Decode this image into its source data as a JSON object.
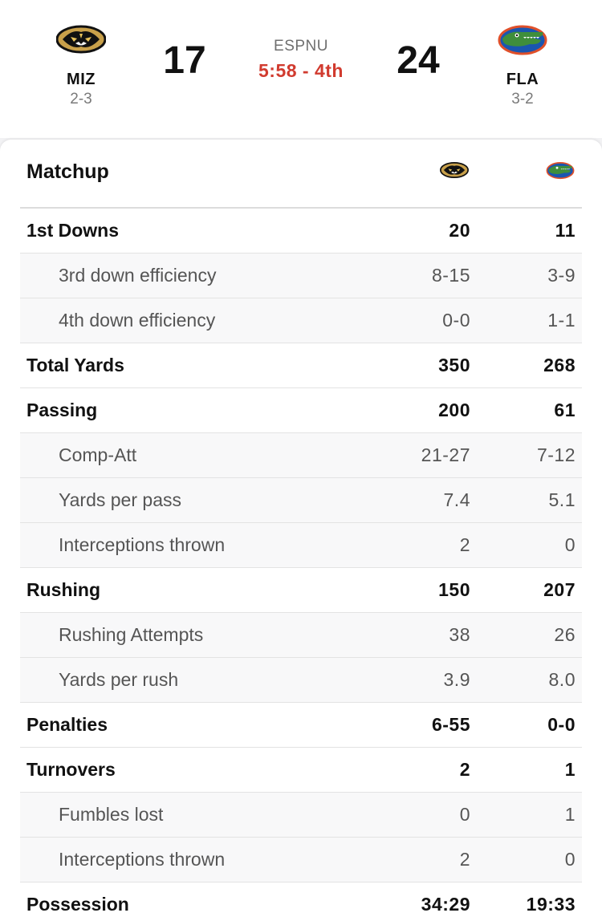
{
  "scoreboard": {
    "away": {
      "abbr": "MIZ",
      "record": "2-3",
      "score": "17",
      "logo_icon": "missouri-tiger-logo-icon"
    },
    "home": {
      "abbr": "FLA",
      "record": "3-2",
      "score": "24",
      "logo_icon": "florida-gator-logo-icon"
    },
    "network": "ESPNU",
    "clock": "5:58 - 4th",
    "clock_color": "#d13b2f"
  },
  "matchup": {
    "title": "Matchup",
    "rows": [
      {
        "label": "1st Downs",
        "away": "20",
        "home": "11",
        "sub": false
      },
      {
        "label": "3rd down efficiency",
        "away": "8-15",
        "home": "3-9",
        "sub": true
      },
      {
        "label": "4th down efficiency",
        "away": "0-0",
        "home": "1-1",
        "sub": true
      },
      {
        "label": "Total Yards",
        "away": "350",
        "home": "268",
        "sub": false
      },
      {
        "label": "Passing",
        "away": "200",
        "home": "61",
        "sub": false
      },
      {
        "label": "Comp-Att",
        "away": "21-27",
        "home": "7-12",
        "sub": true
      },
      {
        "label": "Yards per pass",
        "away": "7.4",
        "home": "5.1",
        "sub": true
      },
      {
        "label": "Interceptions thrown",
        "away": "2",
        "home": "0",
        "sub": true
      },
      {
        "label": "Rushing",
        "away": "150",
        "home": "207",
        "sub": false
      },
      {
        "label": "Rushing Attempts",
        "away": "38",
        "home": "26",
        "sub": true
      },
      {
        "label": "Yards per rush",
        "away": "3.9",
        "home": "8.0",
        "sub": true
      },
      {
        "label": "Penalties",
        "away": "6-55",
        "home": "0-0",
        "sub": false
      },
      {
        "label": "Turnovers",
        "away": "2",
        "home": "1",
        "sub": false
      },
      {
        "label": "Fumbles lost",
        "away": "0",
        "home": "1",
        "sub": true
      },
      {
        "label": "Interceptions thrown",
        "away": "2",
        "home": "0",
        "sub": true
      },
      {
        "label": "Possession",
        "away": "34:29",
        "home": "19:33",
        "sub": false
      }
    ]
  }
}
